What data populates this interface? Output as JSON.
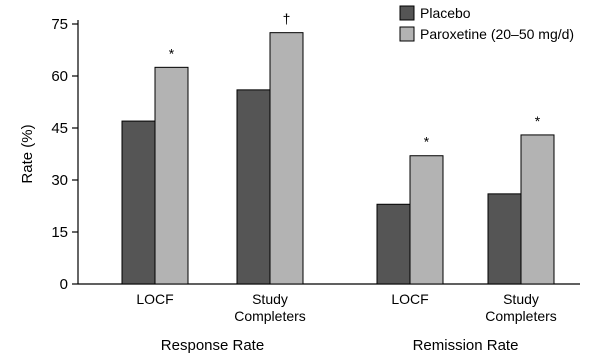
{
  "chart_data": {
    "type": "bar",
    "ylabel": "Rate (%)",
    "ylim": [
      0,
      75
    ],
    "yticks": [
      0,
      15,
      30,
      45,
      60,
      75
    ],
    "categories": [
      {
        "label_lines": [
          "LOCF"
        ],
        "group": "Response Rate"
      },
      {
        "label_lines": [
          "Study",
          "Completers"
        ],
        "group": "Response Rate"
      },
      {
        "label_lines": [
          "LOCF"
        ],
        "group": "Remission Rate"
      },
      {
        "label_lines": [
          "Study",
          "Completers"
        ],
        "group": "Remission Rate"
      }
    ],
    "groups": [
      "Response Rate",
      "Remission Rate"
    ],
    "series": [
      {
        "name": "Placebo",
        "color": "#555555",
        "values": [
          47,
          56,
          23,
          26
        ]
      },
      {
        "name": "Paroxetine (20–50 mg/d)",
        "color": "#b3b3b3",
        "values": [
          62.5,
          72.5,
          37,
          43
        ]
      }
    ],
    "significance_marks": [
      "*",
      "†",
      "*",
      "*"
    ],
    "legend_position": "top-right",
    "grid": false
  }
}
